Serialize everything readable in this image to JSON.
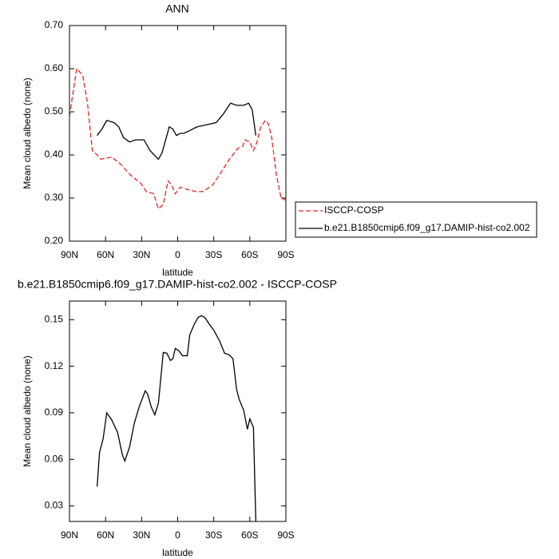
{
  "chart_data": [
    {
      "type": "line",
      "title": "ANN",
      "ylabel": "Mean cloud albedo (none)",
      "xlabel": "latitude",
      "xlim": [
        90,
        -90
      ],
      "xticks": [
        {
          "value": 90,
          "label": "90N"
        },
        {
          "value": 60,
          "label": "60N"
        },
        {
          "value": 30,
          "label": "30N"
        },
        0,
        {
          "value": -30,
          "label": "30S"
        },
        {
          "value": -60,
          "label": "60S"
        },
        {
          "value": -90,
          "label": "90S"
        }
      ],
      "ylim": [
        0.2,
        0.7
      ],
      "yticks": [
        {
          "value": 0.2,
          "label": "0.20"
        },
        {
          "value": 0.3,
          "label": "0.30"
        },
        {
          "value": 0.4,
          "label": "0.40"
        },
        {
          "value": 0.5,
          "label": "0.50"
        },
        {
          "value": 0.6,
          "label": "0.60"
        },
        {
          "value": 0.7,
          "label": "0.70"
        }
      ],
      "legend": "outside-right",
      "series": [
        {
          "name": "ISCCP-COSP",
          "color": "#e8251f",
          "line_style": "dashed",
          "x": [
            90,
            84,
            79,
            75,
            71,
            67,
            64,
            55,
            48,
            38,
            31,
            26,
            20,
            16,
            12,
            8,
            5,
            2,
            -2,
            -8,
            -15,
            -21,
            -29,
            -35,
            -43,
            -50,
            -54,
            -56,
            -60,
            -63,
            -66,
            -69,
            -73,
            -75,
            -78,
            -82,
            -86,
            -90
          ],
          "values": [
            0.49,
            0.6,
            0.585,
            0.52,
            0.41,
            0.4,
            0.39,
            0.395,
            0.38,
            0.35,
            0.335,
            0.315,
            0.31,
            0.275,
            0.285,
            0.34,
            0.33,
            0.31,
            0.325,
            0.32,
            0.315,
            0.315,
            0.33,
            0.355,
            0.39,
            0.415,
            0.42,
            0.435,
            0.43,
            0.41,
            0.43,
            0.465,
            0.48,
            0.475,
            0.445,
            0.355,
            0.3,
            0.295
          ]
        },
        {
          "name": "b.e21.B1850cmip6.f09_g17.DAMIP-hist-co2.002",
          "color": "#000000",
          "line_style": "solid",
          "x": [
            67,
            63,
            59,
            53,
            49,
            45,
            40,
            35,
            28,
            23,
            16,
            13,
            10,
            7,
            4,
            1,
            -2,
            -5,
            -9,
            -16,
            -24,
            -32,
            -38,
            -44,
            -49,
            -55,
            -59,
            -62,
            -65
          ],
          "values": [
            0.445,
            0.46,
            0.48,
            0.475,
            0.465,
            0.44,
            0.43,
            0.435,
            0.435,
            0.41,
            0.39,
            0.405,
            0.435,
            0.465,
            0.46,
            0.445,
            0.45,
            0.45,
            0.455,
            0.465,
            0.47,
            0.475,
            0.495,
            0.52,
            0.515,
            0.515,
            0.52,
            0.505,
            0.445
          ]
        }
      ]
    },
    {
      "type": "line",
      "title": "b.e21.B1850cmip6.f09_g17.DAMIP-hist-co2.002 - ISCCP-COSP",
      "ylabel": "Mean cloud albedo (none)",
      "xlabel": "latitude",
      "xlim": [
        90,
        -90
      ],
      "xticks": [
        {
          "value": 90,
          "label": "90N"
        },
        {
          "value": 60,
          "label": "60N"
        },
        {
          "value": 30,
          "label": "30N"
        },
        0,
        {
          "value": -30,
          "label": "30S"
        },
        {
          "value": -60,
          "label": "60S"
        },
        {
          "value": -90,
          "label": "90S"
        }
      ],
      "ylim": [
        0.02,
        0.162
      ],
      "yticks": [
        0.03,
        0.06,
        0.09,
        0.12,
        0.15
      ],
      "series": [
        {
          "color": "#000000",
          "line_style": "solid",
          "x": [
            67,
            65,
            62,
            59,
            55,
            50,
            46,
            44,
            40,
            36,
            32,
            27,
            25,
            22,
            19,
            16,
            12,
            9,
            6,
            4,
            2,
            -1,
            -4,
            -8,
            -10,
            -14,
            -17,
            -20,
            -23,
            -26,
            -30,
            -35,
            -39,
            -43,
            -46,
            -49,
            -51,
            -55,
            -58,
            -60,
            -63,
            -65
          ],
          "values": [
            0.0424,
            0.0645,
            0.0733,
            0.09,
            0.0856,
            0.0774,
            0.063,
            0.0589,
            0.068,
            0.0836,
            0.0939,
            0.1042,
            0.1021,
            0.0939,
            0.0887,
            0.0964,
            0.1289,
            0.1284,
            0.1237,
            0.1248,
            0.1315,
            0.13,
            0.1268,
            0.1268,
            0.1402,
            0.1474,
            0.1515,
            0.1526,
            0.151,
            0.1474,
            0.1433,
            0.1361,
            0.1284,
            0.1273,
            0.1248,
            0.1052,
            0.099,
            0.0913,
            0.0794,
            0.0861,
            0.0805,
            0.02
          ]
        }
      ]
    }
  ]
}
